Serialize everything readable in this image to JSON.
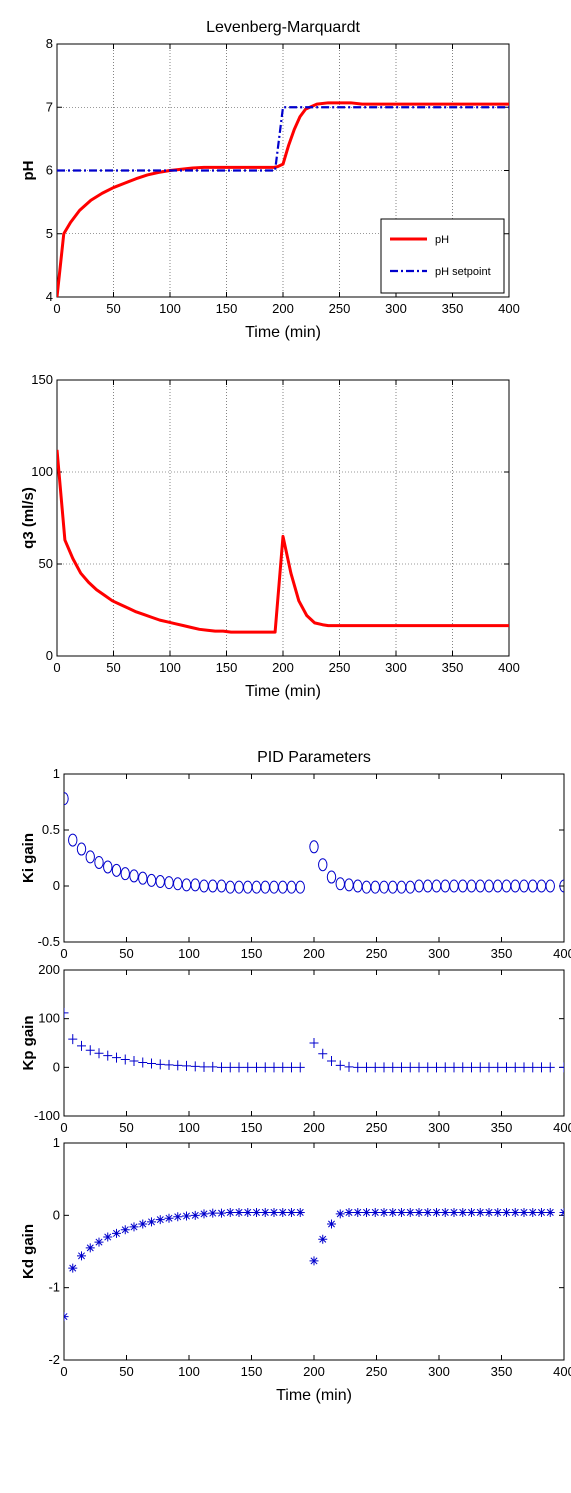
{
  "chart_data": [
    {
      "type": "line",
      "title": "Levenberg-Marquardt",
      "xlabel": "Time (min)",
      "ylabel": "pH",
      "xlim": [
        0,
        400
      ],
      "ylim": [
        4,
        8
      ],
      "xticks": [
        0,
        50,
        100,
        150,
        200,
        250,
        300,
        350,
        400
      ],
      "yticks": [
        4,
        5,
        6,
        7,
        8
      ],
      "grid": true,
      "legend_position": "bottom-right",
      "series": [
        {
          "name": "pH",
          "color": "#ff0000",
          "style": "solid",
          "x": [
            0,
            6,
            12,
            20,
            30,
            40,
            50,
            60,
            70,
            80,
            90,
            100,
            110,
            120,
            130,
            140,
            150,
            160,
            170,
            180,
            190,
            192,
            195,
            200,
            205,
            210,
            215,
            220,
            230,
            240,
            250,
            260,
            270,
            280,
            300,
            350,
            400
          ],
          "y": [
            4.0,
            5.0,
            5.18,
            5.37,
            5.53,
            5.64,
            5.73,
            5.8,
            5.87,
            5.93,
            5.97,
            6.0,
            6.02,
            6.04,
            6.05,
            6.05,
            6.05,
            6.05,
            6.05,
            6.05,
            6.05,
            6.05,
            6.06,
            6.1,
            6.4,
            6.65,
            6.85,
            6.97,
            7.05,
            7.07,
            7.07,
            7.07,
            7.05,
            7.05,
            7.05,
            7.05,
            7.05
          ]
        },
        {
          "name": "pH setpoint",
          "color": "#0000cc",
          "style": "dashdot",
          "x": [
            0,
            193,
            200,
            400
          ],
          "y": [
            6,
            6,
            7,
            7
          ]
        }
      ]
    },
    {
      "type": "line",
      "title": "",
      "xlabel": "Time (min)",
      "ylabel": "q3 (ml/s)",
      "xlim": [
        0,
        400
      ],
      "ylim": [
        0,
        150
      ],
      "xticks": [
        0,
        50,
        100,
        150,
        200,
        250,
        300,
        350,
        400
      ],
      "yticks": [
        0,
        50,
        100,
        150
      ],
      "grid": true,
      "series": [
        {
          "color": "#ff0000",
          "style": "solid",
          "x": [
            0,
            7,
            14,
            21,
            28,
            35,
            42,
            49,
            56,
            63,
            70,
            77,
            84,
            91,
            98,
            105,
            112,
            119,
            126,
            133,
            140,
            147,
            154,
            161,
            168,
            175,
            182,
            190,
            193,
            200,
            207,
            214,
            221,
            228,
            235,
            240,
            250,
            300,
            350,
            400
          ],
          "y": [
            112,
            63,
            53,
            45,
            40,
            36,
            33,
            30,
            28,
            26,
            24,
            22.5,
            21,
            19.5,
            18.5,
            17.5,
            16.5,
            15.5,
            14.5,
            14,
            13.5,
            13.5,
            13,
            13,
            13,
            13,
            13,
            13,
            13,
            65,
            45,
            30,
            22,
            18,
            17,
            16.5,
            16.5,
            16.5,
            16.5,
            16.5
          ]
        }
      ]
    },
    {
      "type": "scatter",
      "title": "PID Parameters",
      "xlabel": "",
      "ylabel": "Ki gain",
      "xlim": [
        0,
        400
      ],
      "ylim": [
        -0.5,
        1
      ],
      "xticks": [
        0,
        50,
        100,
        150,
        200,
        250,
        300,
        350,
        400
      ],
      "yticks": [
        -0.5,
        0,
        0.5,
        1
      ],
      "ytick_labels": [
        "-0.5",
        "0",
        "0.5",
        "1"
      ],
      "grid": false,
      "marker": "circle",
      "series": [
        {
          "color": "#0000cc",
          "x": [
            0,
            7,
            14,
            21,
            28,
            35,
            42,
            49,
            56,
            63,
            70,
            77,
            84,
            91,
            98,
            105,
            112,
            119,
            126,
            133,
            140,
            147,
            154,
            161,
            168,
            175,
            182,
            189,
            200,
            207,
            214,
            221,
            228,
            235,
            242,
            249,
            256,
            263,
            270,
            277,
            284,
            291,
            298,
            305,
            312,
            319,
            326,
            333,
            340,
            347,
            354,
            361,
            368,
            375,
            382,
            389,
            400
          ],
          "y": [
            0.78,
            0.41,
            0.33,
            0.26,
            0.21,
            0.17,
            0.14,
            0.11,
            0.09,
            0.07,
            0.05,
            0.04,
            0.03,
            0.02,
            0.01,
            0.01,
            0.0,
            0.0,
            0.0,
            -0.01,
            -0.01,
            -0.01,
            -0.01,
            -0.01,
            -0.01,
            -0.01,
            -0.01,
            -0.01,
            0.35,
            0.19,
            0.08,
            0.02,
            0.01,
            0.0,
            -0.01,
            -0.01,
            -0.01,
            -0.01,
            -0.01,
            -0.01,
            0.0,
            0.0,
            0.0,
            0.0,
            0.0,
            0.0,
            0.0,
            0.0,
            0.0,
            0.0,
            0.0,
            0.0,
            0.0,
            0.0,
            0.0,
            0.0,
            0.0
          ]
        }
      ]
    },
    {
      "type": "scatter",
      "title": "",
      "xlabel": "",
      "ylabel": "Kp gain",
      "xlim": [
        0,
        400
      ],
      "ylim": [
        -100,
        200
      ],
      "xticks": [
        0,
        50,
        100,
        150,
        200,
        250,
        300,
        350,
        400
      ],
      "yticks": [
        -100,
        0,
        100,
        200
      ],
      "grid": false,
      "marker": "plus",
      "series": [
        {
          "color": "#0000cc",
          "x": [
            0,
            7,
            14,
            21,
            28,
            35,
            42,
            49,
            56,
            63,
            70,
            77,
            84,
            91,
            98,
            105,
            112,
            119,
            126,
            133,
            140,
            147,
            154,
            161,
            168,
            175,
            182,
            189,
            200,
            207,
            214,
            221,
            228,
            235,
            242,
            249,
            256,
            263,
            270,
            277,
            284,
            291,
            298,
            305,
            312,
            319,
            326,
            333,
            340,
            347,
            354,
            361,
            368,
            375,
            382,
            389,
            400
          ],
          "y": [
            112,
            58,
            44,
            35,
            29,
            24,
            20,
            16,
            13,
            10,
            8,
            6,
            5,
            4,
            3,
            2,
            1,
            1,
            0,
            0,
            0,
            0,
            0,
            0,
            0,
            0,
            0,
            0,
            50,
            28,
            13,
            4,
            1,
            0,
            0,
            0,
            0,
            0,
            0,
            0,
            0,
            0,
            0,
            0,
            0,
            0,
            0,
            0,
            0,
            0,
            0,
            0,
            0,
            0,
            0,
            0,
            0
          ]
        }
      ]
    },
    {
      "type": "scatter",
      "title": "",
      "xlabel": "Time (min)",
      "ylabel": "Kd gain",
      "xlim": [
        0,
        400
      ],
      "ylim": [
        -2,
        1
      ],
      "xticks": [
        0,
        50,
        100,
        150,
        200,
        250,
        300,
        350,
        400
      ],
      "yticks": [
        -2,
        -1,
        0,
        1
      ],
      "grid": false,
      "marker": "asterisk",
      "series": [
        {
          "color": "#0000cc",
          "x": [
            0,
            7,
            14,
            21,
            28,
            35,
            42,
            49,
            56,
            63,
            70,
            77,
            84,
            91,
            98,
            105,
            112,
            119,
            126,
            133,
            140,
            147,
            154,
            161,
            168,
            175,
            182,
            189,
            200,
            207,
            214,
            221,
            228,
            235,
            242,
            249,
            256,
            263,
            270,
            277,
            284,
            291,
            298,
            305,
            312,
            319,
            326,
            333,
            340,
            347,
            354,
            361,
            368,
            375,
            382,
            389,
            400
          ],
          "y": [
            -1.4,
            -0.73,
            -0.56,
            -0.45,
            -0.37,
            -0.3,
            -0.25,
            -0.2,
            -0.16,
            -0.12,
            -0.09,
            -0.06,
            -0.04,
            -0.02,
            -0.01,
            0.0,
            0.02,
            0.03,
            0.03,
            0.04,
            0.04,
            0.04,
            0.04,
            0.04,
            0.04,
            0.04,
            0.04,
            0.04,
            -0.63,
            -0.33,
            -0.12,
            0.02,
            0.04,
            0.04,
            0.04,
            0.04,
            0.04,
            0.04,
            0.04,
            0.04,
            0.04,
            0.04,
            0.04,
            0.04,
            0.04,
            0.04,
            0.04,
            0.04,
            0.04,
            0.04,
            0.04,
            0.04,
            0.04,
            0.04,
            0.04,
            0.04,
            0.04
          ]
        }
      ]
    }
  ]
}
